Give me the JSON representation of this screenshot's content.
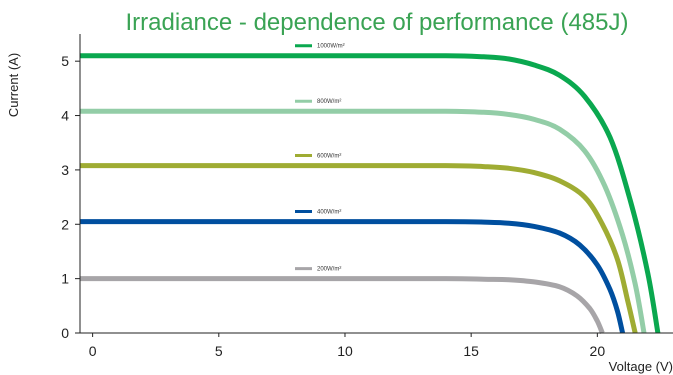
{
  "colors": {
    "title": "#3aa354",
    "axis": "#222222",
    "background": "#ffffff"
  },
  "chart_data": {
    "type": "line",
    "title": "Irradiance - dependence of performance (485J)",
    "xlabel": "Voltage (V)",
    "ylabel": "Current (A)",
    "xlim": [
      -0.5,
      22.8
    ],
    "ylim": [
      0,
      5.5
    ],
    "xticks": [
      "0",
      "5",
      "10",
      "15",
      "20"
    ],
    "yticks": [
      "0",
      "1",
      "2",
      "3",
      "4",
      "5"
    ],
    "grid": false,
    "legend": "inline",
    "series": [
      {
        "name": "1000W/m²",
        "color": "#0aa84f",
        "isc": 5.1,
        "voc": 22.4,
        "x": [
          -0.5,
          5,
          10,
          14,
          15.5,
          16.5,
          17.5,
          18.5,
          19.5,
          20.5,
          21.3,
          22.0,
          22.4
        ],
        "y": [
          5.1,
          5.1,
          5.1,
          5.1,
          5.08,
          5.04,
          4.93,
          4.74,
          4.35,
          3.6,
          2.45,
          1.1,
          0.0
        ]
      },
      {
        "name": "800W/m²",
        "color": "#93cda7",
        "isc": 4.08,
        "voc": 21.85,
        "x": [
          -0.5,
          5,
          10,
          14,
          15.5,
          16.5,
          17.5,
          18.5,
          19.5,
          20.3,
          21.0,
          21.5,
          21.85
        ],
        "y": [
          4.08,
          4.08,
          4.08,
          4.08,
          4.06,
          4.02,
          3.93,
          3.75,
          3.35,
          2.7,
          1.8,
          0.9,
          0.0
        ]
      },
      {
        "name": "600W/m²",
        "color": "#9fac33",
        "isc": 3.08,
        "voc": 21.5,
        "x": [
          -0.5,
          5,
          10,
          14,
          15.5,
          16.5,
          17.5,
          18.5,
          19.5,
          20.2,
          20.8,
          21.2,
          21.5
        ],
        "y": [
          3.08,
          3.08,
          3.08,
          3.08,
          3.06,
          3.03,
          2.95,
          2.8,
          2.5,
          2.0,
          1.35,
          0.6,
          0.0
        ]
      },
      {
        "name": "400W/m²",
        "color": "#004f9f",
        "isc": 2.05,
        "voc": 21.0,
        "x": [
          -0.5,
          5,
          10,
          14,
          15.5,
          16.5,
          17.5,
          18.5,
          19.3,
          20.0,
          20.5,
          20.8,
          21.0
        ],
        "y": [
          2.05,
          2.05,
          2.05,
          2.05,
          2.04,
          2.02,
          1.96,
          1.84,
          1.62,
          1.25,
          0.8,
          0.4,
          0.0
        ]
      },
      {
        "name": "200W/m²",
        "color": "#a7a5a8",
        "isc": 1.0,
        "voc": 20.2,
        "x": [
          -0.5,
          5,
          10,
          14,
          15.5,
          16.5,
          17.5,
          18.5,
          19.2,
          19.7,
          20.0,
          20.2
        ],
        "y": [
          1.0,
          1.0,
          1.0,
          1.0,
          0.99,
          0.98,
          0.94,
          0.85,
          0.68,
          0.45,
          0.22,
          0.0
        ]
      }
    ]
  }
}
